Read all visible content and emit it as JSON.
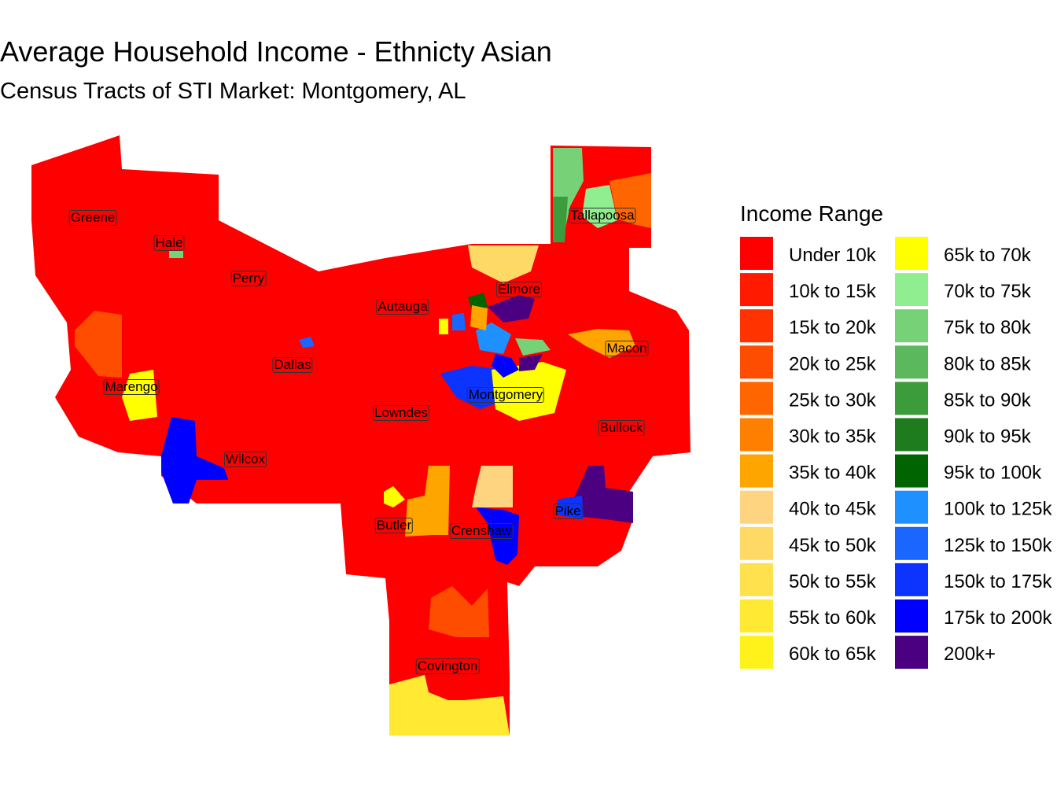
{
  "title": "Average Household Income - Ethnicty Asian",
  "subtitle": "Census Tracts of STI Market: Montgomery, AL",
  "legend": {
    "title": "Income Range",
    "items": [
      {
        "label": "Under 10k",
        "color": "#ff0000"
      },
      {
        "label": "10k to 15k",
        "color": "#ff1a00"
      },
      {
        "label": "15k to 20k",
        "color": "#ff3300"
      },
      {
        "label": "20k to 25k",
        "color": "#ff4d00"
      },
      {
        "label": "25k to 30k",
        "color": "#ff6600"
      },
      {
        "label": "30k to 35k",
        "color": "#ff8000"
      },
      {
        "label": "35k to 40k",
        "color": "#ffa500"
      },
      {
        "label": "40k to 45k",
        "color": "#ffd480"
      },
      {
        "label": "45k to 50k",
        "color": "#ffd966"
      },
      {
        "label": "50k to 55k",
        "color": "#ffe14d"
      },
      {
        "label": "55k to 60k",
        "color": "#ffe933"
      },
      {
        "label": "60k to 65k",
        "color": "#fff21a"
      },
      {
        "label": "65k to 70k",
        "color": "#ffff00"
      },
      {
        "label": "70k to 75k",
        "color": "#90ee90"
      },
      {
        "label": "75k to 80k",
        "color": "#77d177"
      },
      {
        "label": "80k to 85k",
        "color": "#5cb85c"
      },
      {
        "label": "85k to 90k",
        "color": "#3c9c3c"
      },
      {
        "label": "90k to 95k",
        "color": "#1e7b1e"
      },
      {
        "label": "95k to 100k",
        "color": "#006400"
      },
      {
        "label": "100k to 125k",
        "color": "#1e90ff"
      },
      {
        "label": "125k to 150k",
        "color": "#1a66ff"
      },
      {
        "label": "150k to 175k",
        "color": "#0d33ff"
      },
      {
        "label": "175k to 200k",
        "color": "#0000ff"
      },
      {
        "label": "200k+",
        "color": "#4b0082"
      }
    ]
  },
  "counties": [
    "Greene",
    "Hale",
    "Perry",
    "Autauga",
    "Elmore",
    "Tallapoosa",
    "Dallas",
    "Macon",
    "Marengo",
    "Montgomery",
    "Lowndes",
    "Bullock",
    "Wilcox",
    "Butler",
    "Crenshaw",
    "Pike",
    "Covington"
  ]
}
